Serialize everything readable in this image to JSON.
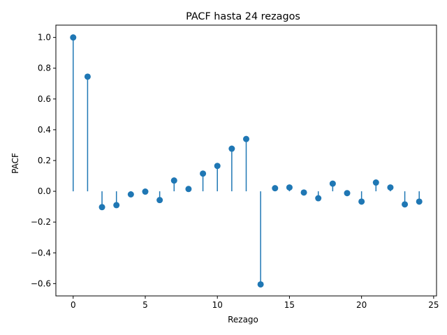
{
  "chart_data": {
    "type": "stem",
    "title": "PACF hasta 24 rezagos",
    "xlabel": "Rezago",
    "ylabel": "PACF",
    "xlim": [
      -1.2,
      25.2
    ],
    "ylim": [
      -0.68,
      1.08
    ],
    "xticks": [
      0,
      5,
      10,
      15,
      20,
      25
    ],
    "yticks": [
      -0.6,
      -0.4,
      -0.2,
      0.0,
      0.2,
      0.4,
      0.6,
      0.8,
      1.0
    ],
    "xtick_labels": [
      "0",
      "5",
      "10",
      "15",
      "20",
      "25"
    ],
    "ytick_labels": [
      "−0.6",
      "−0.4",
      "−0.2",
      "0.0",
      "0.2",
      "0.4",
      "0.6",
      "0.8",
      "1.0"
    ],
    "grid": false,
    "color": "#1f77b4",
    "x": [
      0,
      1,
      2,
      3,
      4,
      5,
      6,
      7,
      8,
      9,
      10,
      11,
      12,
      13,
      14,
      15,
      16,
      17,
      18,
      19,
      20,
      21,
      22,
      23,
      24
    ],
    "values": [
      1.0,
      0.745,
      -0.103,
      -0.09,
      -0.02,
      -0.002,
      -0.057,
      0.07,
      0.015,
      0.115,
      0.165,
      0.277,
      0.34,
      -0.605,
      0.02,
      0.025,
      -0.008,
      -0.045,
      0.05,
      -0.012,
      -0.067,
      0.057,
      0.025,
      -0.085,
      -0.067
    ]
  }
}
